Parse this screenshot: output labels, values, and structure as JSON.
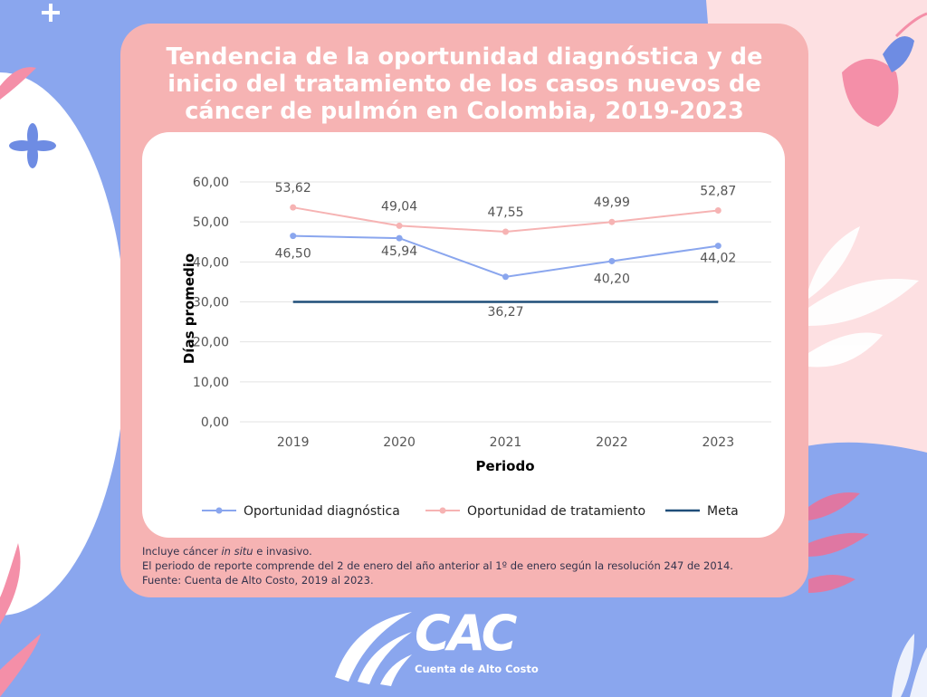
{
  "title_lines": [
    "Tendencia de la oportunidad diagnóstica y de",
    "inicio del tratamiento de los casos nuevos de",
    "cáncer de pulmón en Colombia, 2019-2023"
  ],
  "chart_data": {
    "type": "line",
    "title": "Tendencia de la oportunidad diagnóstica y de inicio del tratamiento de los casos nuevos de cáncer de pulmón en Colombia, 2019-2023",
    "xlabel": "Periodo",
    "ylabel": "Días promedio",
    "categories": [
      "2019",
      "2020",
      "2021",
      "2022",
      "2023"
    ],
    "ylim": [
      0,
      60
    ],
    "yticks": [
      "0,00",
      "10,00",
      "20,00",
      "30,00",
      "40,00",
      "50,00",
      "60,00"
    ],
    "grid": true,
    "legend_position": "bottom",
    "series": [
      {
        "name": "Oportunidad diagnóstica",
        "values": [
          46.5,
          45.94,
          36.27,
          40.2,
          44.02
        ],
        "labels": [
          "46,50",
          "45,94",
          "36,27",
          "40,20",
          "44,02"
        ],
        "color": "#8aa6ee",
        "markers": true
      },
      {
        "name": "Oportunidad de tratamiento",
        "values": [
          53.62,
          49.04,
          47.55,
          49.99,
          52.87
        ],
        "labels": [
          "53,62",
          "49,04",
          "47,55",
          "49,99",
          "52,87"
        ],
        "color": "#f6b3b3",
        "markers": true
      },
      {
        "name": "Meta",
        "values": [
          30,
          30,
          30,
          30,
          30
        ],
        "color": "#1f4e79",
        "markers": false
      }
    ]
  },
  "notes": {
    "line1_prefix": "Incluye cáncer ",
    "line1_italic": "in situ",
    "line1_suffix": " e invasivo.",
    "line2": "El periodo de reporte comprende del 2 de enero del año anterior al 1º de enero según la resolución 247 de 2014.",
    "line3": "Fuente: Cuenta de Alto Costo, 2019 al 2023."
  },
  "logo": {
    "text": "CAC",
    "subtitle": "Cuenta de Alto Costo"
  },
  "colors": {
    "background": "#8aa6ee",
    "card": "#f6b3b3",
    "pink_panel": "#fde0e2",
    "text_dark": "#33334d"
  }
}
